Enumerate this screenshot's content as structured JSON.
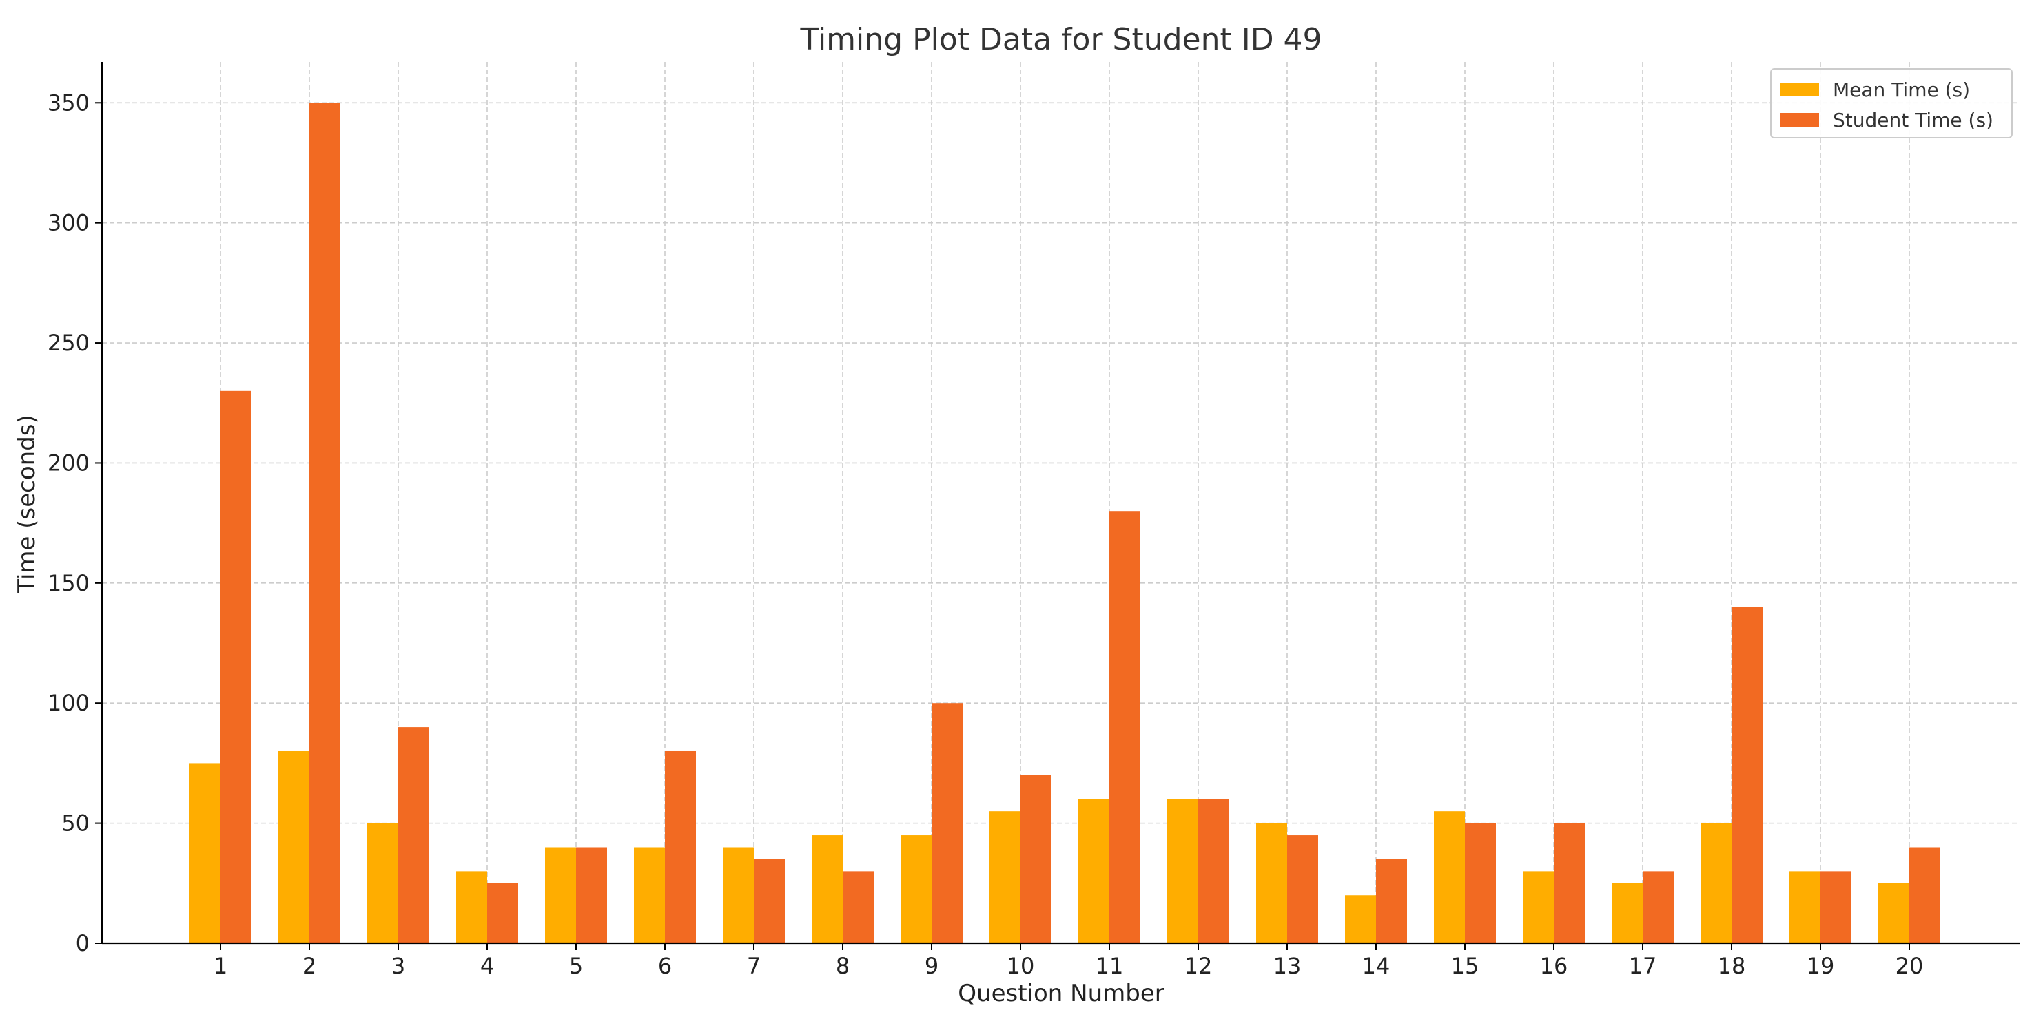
{
  "chart_data": {
    "type": "bar",
    "title": "Timing Plot Data for Student ID 49",
    "xlabel": "Question Number",
    "ylabel": "Time (seconds)",
    "categories": [
      "1",
      "2",
      "3",
      "4",
      "5",
      "6",
      "7",
      "8",
      "9",
      "10",
      "11",
      "12",
      "13",
      "14",
      "15",
      "16",
      "17",
      "18",
      "19",
      "20"
    ],
    "series": [
      {
        "name": "Mean Time (s)",
        "color": "#FFAD00",
        "values": [
          75,
          80,
          50,
          30,
          40,
          40,
          40,
          45,
          45,
          55,
          60,
          60,
          50,
          20,
          55,
          30,
          25,
          50,
          30,
          25
        ]
      },
      {
        "name": "Student Time (s)",
        "color": "#F26A22",
        "values": [
          230,
          350,
          90,
          25,
          40,
          80,
          35,
          30,
          100,
          70,
          180,
          60,
          45,
          35,
          50,
          50,
          30,
          140,
          30,
          40
        ]
      }
    ],
    "ylim": [
      0,
      367
    ],
    "yticks": [
      0,
      50,
      100,
      150,
      200,
      250,
      300,
      350
    ],
    "grid": true,
    "legend_position": "top-right"
  }
}
